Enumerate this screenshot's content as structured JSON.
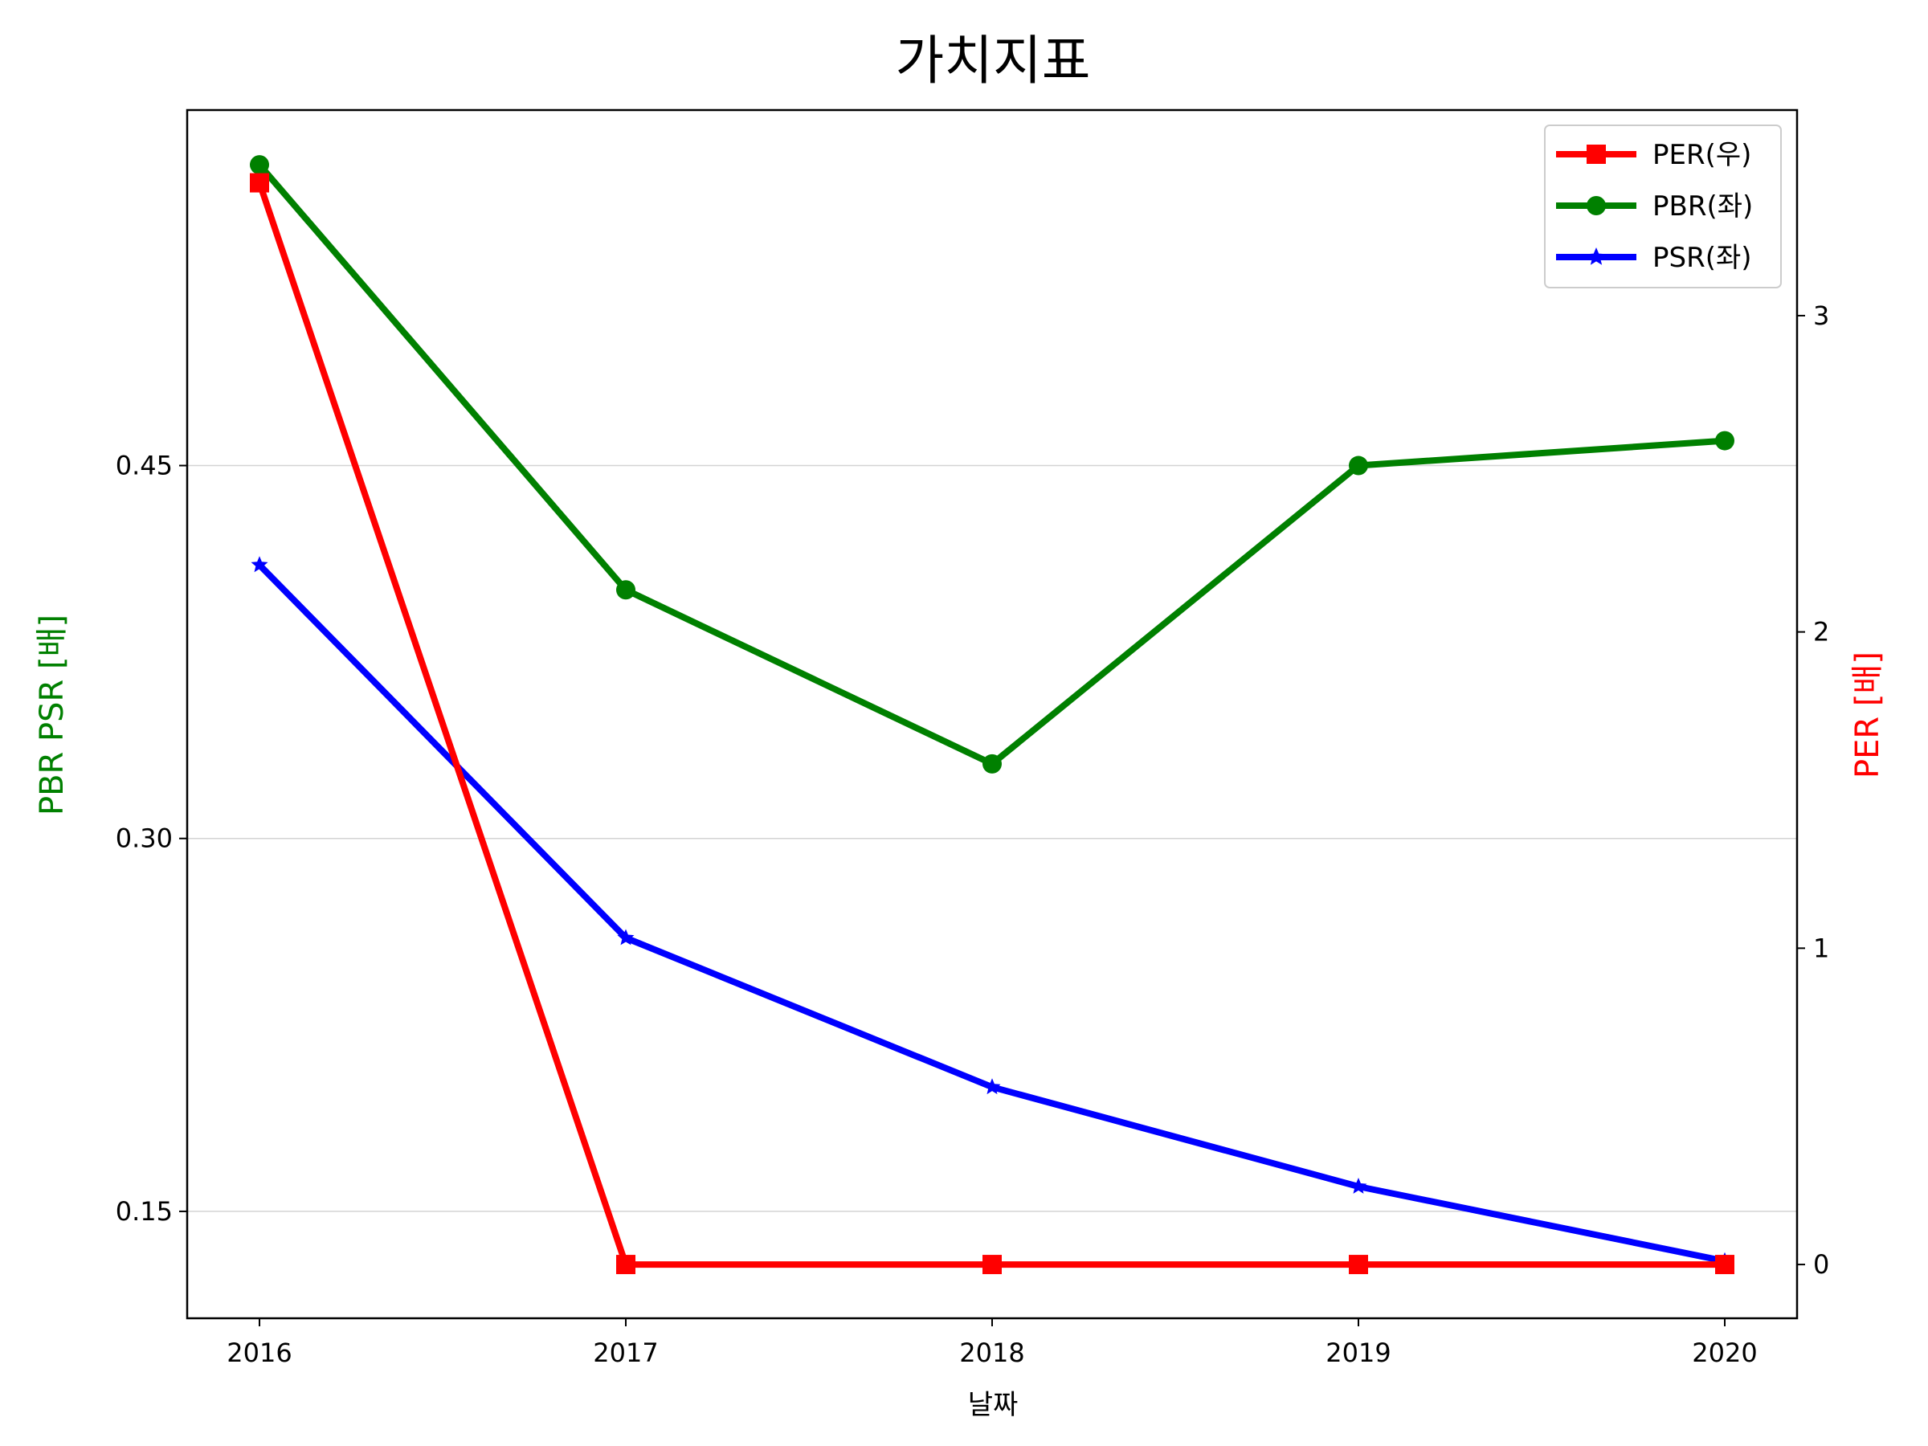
{
  "chart_data": {
    "type": "line",
    "title": "가치지표",
    "xlabel": "날짜",
    "ylabel_left": "PBR PSR [배]",
    "ylabel_right": "PER [배]",
    "categories": [
      "2016",
      "2017",
      "2018",
      "2019",
      "2020"
    ],
    "left_axis": {
      "ylim": [
        0.107,
        0.593
      ],
      "ticks": [
        0.15,
        0.3,
        0.45
      ],
      "tick_labels": [
        "0.15",
        "0.30",
        "0.45"
      ],
      "grid": true
    },
    "right_axis": {
      "ylim": [
        -0.17,
        3.65
      ],
      "ticks": [
        0,
        1,
        2,
        3
      ],
      "tick_labels": [
        "0",
        "1",
        "2",
        "3"
      ]
    },
    "series": [
      {
        "name": "PER(우)",
        "axis": "right",
        "color": "#ff0000",
        "marker": "square",
        "values": [
          3.42,
          0,
          0,
          0,
          0
        ]
      },
      {
        "name": "PBR(좌)",
        "axis": "left",
        "color": "#008000",
        "marker": "circle",
        "values": [
          0.571,
          0.4,
          0.33,
          0.45,
          0.46
        ]
      },
      {
        "name": "PSR(좌)",
        "axis": "left",
        "color": "#0000ff",
        "marker": "star",
        "values": [
          0.41,
          0.26,
          0.2,
          0.16,
          0.13
        ]
      }
    ],
    "legend_position": "top-right",
    "colors": {
      "left_label": "#008000",
      "right_label": "#ff0000",
      "grid": "#d3d3d3"
    }
  }
}
